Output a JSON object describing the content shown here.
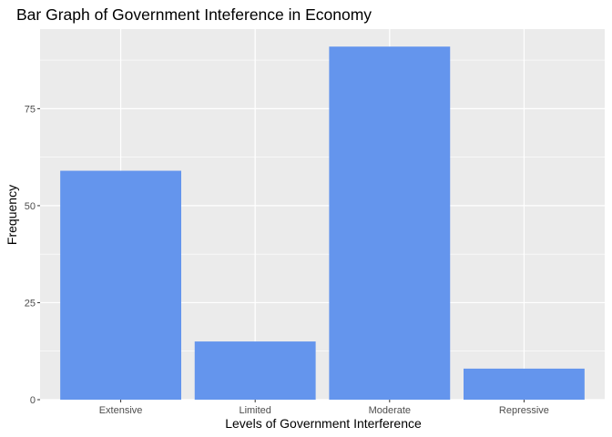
{
  "chart_data": {
    "type": "bar",
    "title": "Bar Graph of Government Inteference in Economy",
    "xlabel": "Levels of Government Interference",
    "ylabel": "Frequency",
    "categories": [
      "Extensive",
      "Limited",
      "Moderate",
      "Repressive"
    ],
    "values": [
      59,
      15,
      91,
      8
    ],
    "ylim": [
      0,
      95.5
    ],
    "yticks": [
      0,
      25,
      50,
      75
    ],
    "ytick_labels": [
      "0",
      "25",
      "50",
      "75"
    ],
    "grid": true,
    "bar_color": "#6495ED",
    "panel_background": "#EBEBEB",
    "gridline_color": "#FFFFFF"
  }
}
